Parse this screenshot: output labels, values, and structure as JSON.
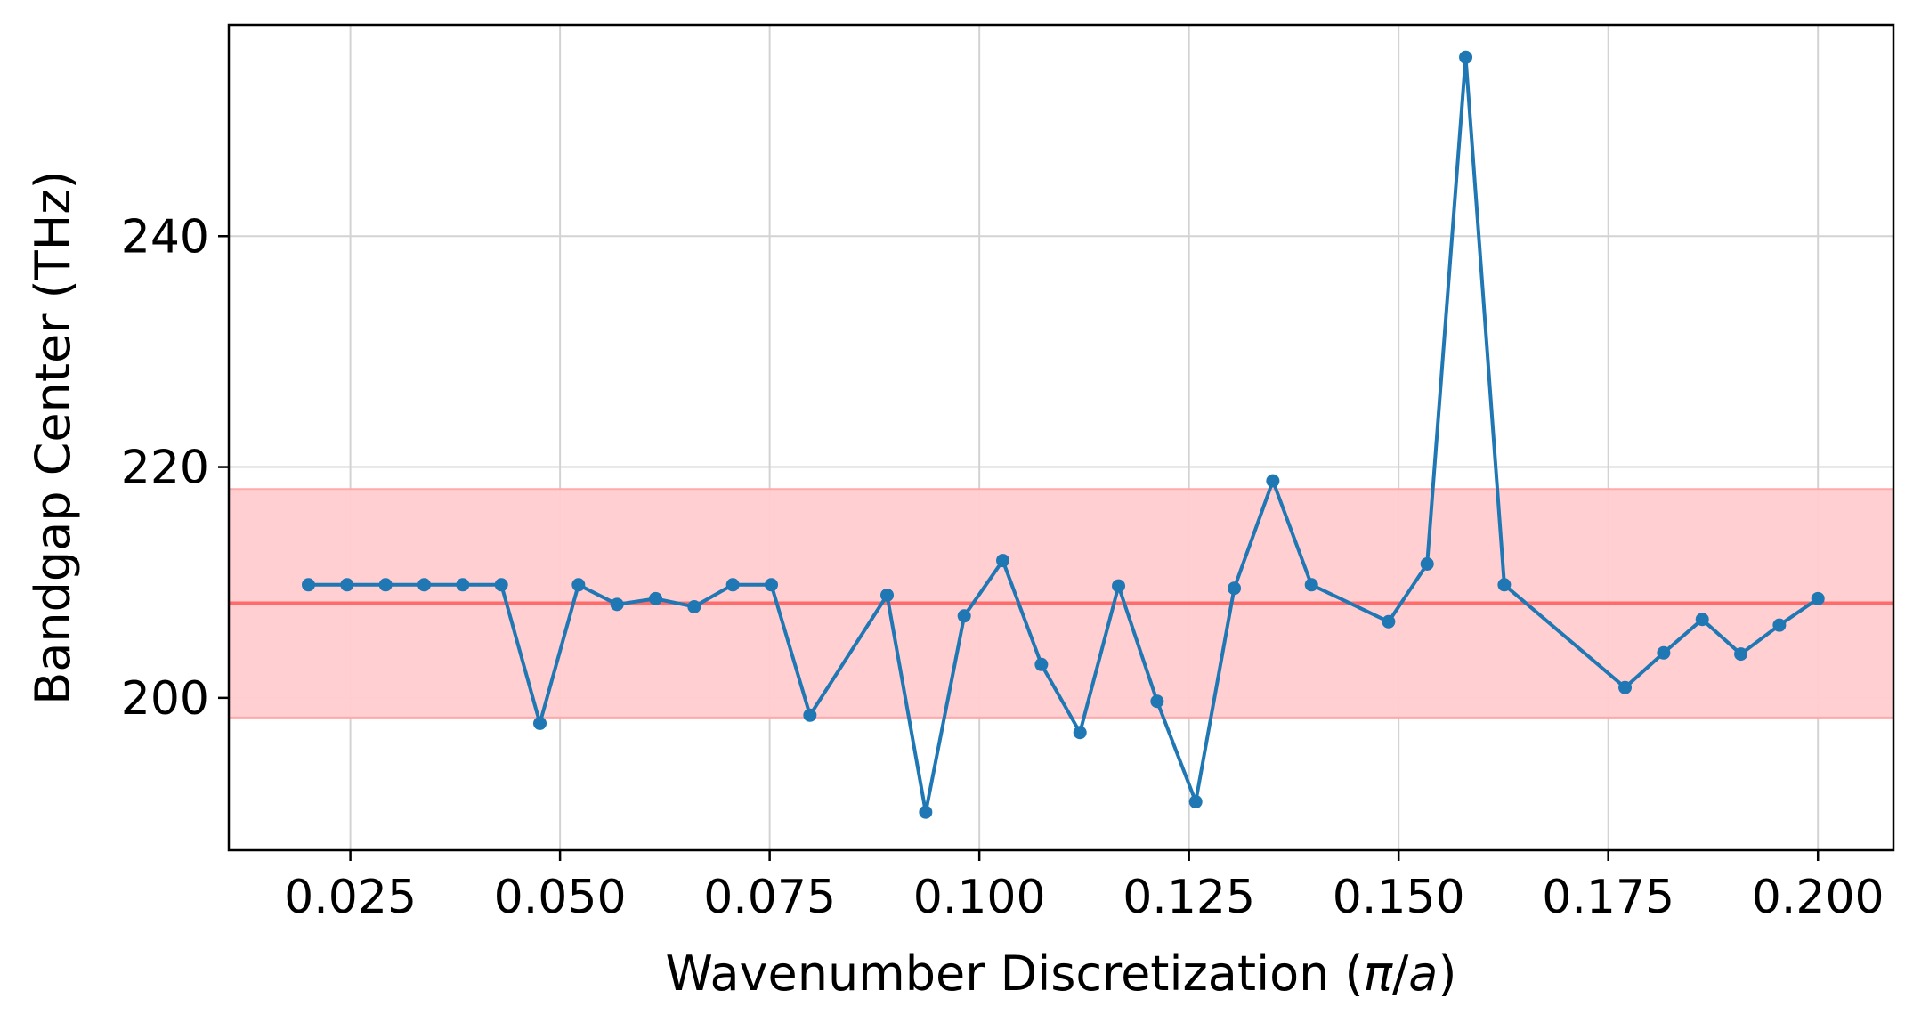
{
  "chart_data": {
    "type": "line",
    "title": "",
    "xlabel": "Wavenumber Discretization (π/a)",
    "xlabel_parts": {
      "prefix": "Wavenumber Discretization (",
      "pi": "π",
      "slash": "/",
      "a": "a",
      "suffix": ")"
    },
    "ylabel": "Bandgap Center (THz)",
    "xlim": [
      0.0105,
      0.209
    ],
    "ylim": [
      186.8,
      258.3
    ],
    "xticks": [
      0.025,
      0.05,
      0.075,
      0.1,
      0.125,
      0.15,
      0.175,
      0.2
    ],
    "xtick_labels": [
      "0.025",
      "0.050",
      "0.075",
      "0.100",
      "0.125",
      "0.150",
      "0.175",
      "0.200"
    ],
    "yticks": [
      200,
      220,
      240
    ],
    "ytick_labels": [
      "200",
      "220",
      "240"
    ],
    "grid": true,
    "colors": {
      "series": "#1f77b4",
      "mean_line": "#ff6b6b",
      "band": "#ffcccf",
      "band_edge": "#ffaaaa"
    },
    "mean": 208.2,
    "band": [
      198.3,
      218.1
    ],
    "series": [
      {
        "x": [
          0.02,
          0.0246,
          0.0292,
          0.0338,
          0.0384,
          0.043,
          0.0476,
          0.0522,
          0.0568,
          0.0614,
          0.066,
          0.0706,
          0.0752,
          0.0798,
          0.089,
          0.0936,
          0.0982,
          0.1028,
          0.1074,
          0.112,
          0.1166,
          0.1212,
          0.1258,
          0.1304,
          0.135,
          0.1396,
          0.1488,
          0.1534,
          0.158,
          0.1626,
          0.177,
          0.1816,
          0.1862,
          0.1908,
          0.1954,
          0.2
        ],
        "y": [
          209.8,
          209.8,
          209.8,
          209.8,
          209.8,
          209.8,
          197.8,
          209.8,
          208.1,
          208.6,
          207.9,
          209.8,
          209.8,
          198.5,
          208.9,
          190.1,
          207.1,
          211.9,
          202.9,
          197.0,
          209.7,
          199.7,
          191.0,
          209.5,
          218.8,
          209.8,
          206.6,
          211.6,
          255.5,
          209.8,
          200.9,
          203.9,
          206.8,
          203.8,
          206.3,
          208.6
        ]
      }
    ]
  }
}
